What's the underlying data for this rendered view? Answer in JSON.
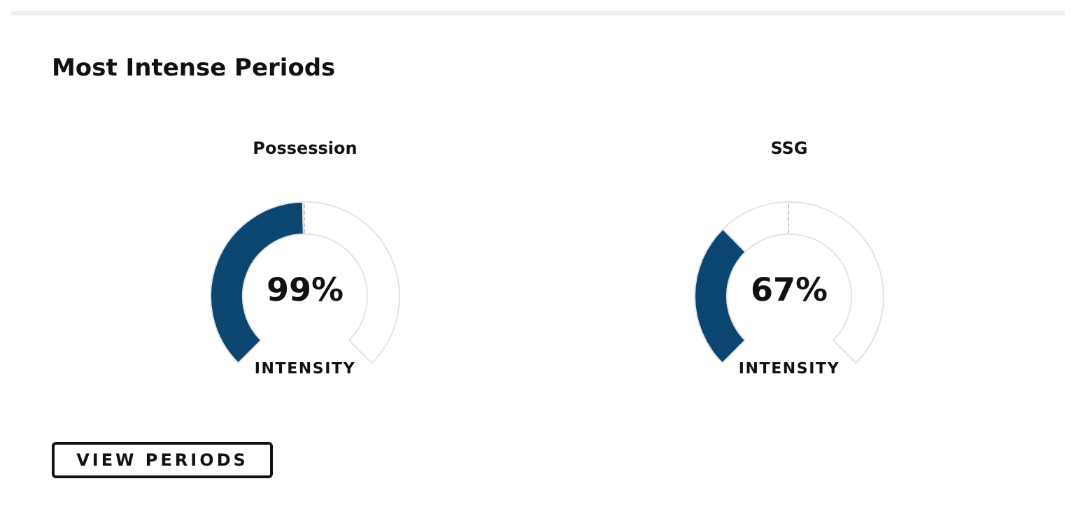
{
  "chart_data": [
    {
      "type": "other",
      "title": "Most Intense Periods",
      "annotations": [
        "VIEW PERIODS"
      ]
    },
    {
      "type": "donut",
      "title": "Possession",
      "categories": [
        null,
        null
      ],
      "values": [
        49.5,
        50.5
      ],
      "colors": [
        "#0a4670",
        "#ffffff"
      ],
      "annotations": [
        "99%",
        "INTENSITY"
      ]
    },
    {
      "type": "donut",
      "title": "SSG",
      "categories": [
        null,
        null
      ],
      "values": [
        33.5,
        66.5
      ],
      "colors": [
        "#0a4670",
        "#ffffff"
      ],
      "annotations": [
        "67%",
        "INTENSITY"
      ]
    }
  ]
}
